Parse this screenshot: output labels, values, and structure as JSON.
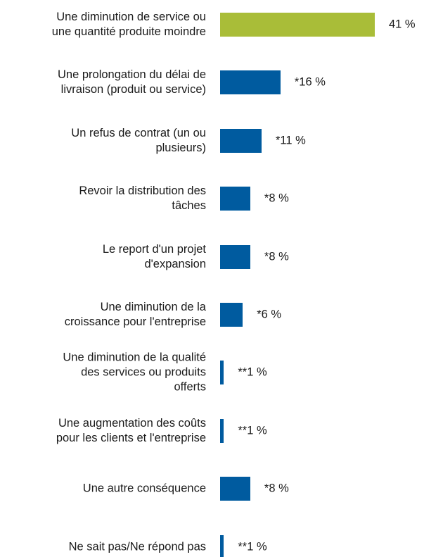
{
  "chart_data": {
    "type": "bar",
    "orientation": "horizontal",
    "categories": [
      "Une diminution de service ou\nune quantité produite moindre",
      "Une prolongation du délai de\nlivraison (produit ou service)",
      "Un refus de contrat (un ou\nplusieurs)",
      "Revoir la distribution des\ntâches",
      "Le report d'un projet\nd'expansion",
      "Une diminution de la\ncroissance pour l'entreprise",
      "Une diminution de la qualité\ndes services ou produits\nofferts",
      "Une augmentation des coûts\npour les clients et l'entreprise",
      "Une autre conséquence",
      "Ne sait pas/Ne répond pas"
    ],
    "values": [
      41,
      16,
      11,
      8,
      8,
      6,
      1,
      1,
      8,
      1
    ],
    "value_labels": [
      "41 %",
      "*16 %",
      "*11 %",
      "*8 %",
      "*8 %",
      "*6 %",
      "**1 %",
      "**1 %",
      "*8 %",
      "**1 %"
    ],
    "colors": [
      "#a9bd38",
      "#005b9f",
      "#005b9f",
      "#005b9f",
      "#005b9f",
      "#005b9f",
      "#005b9f",
      "#005b9f",
      "#005b9f",
      "#005b9f"
    ]
  }
}
